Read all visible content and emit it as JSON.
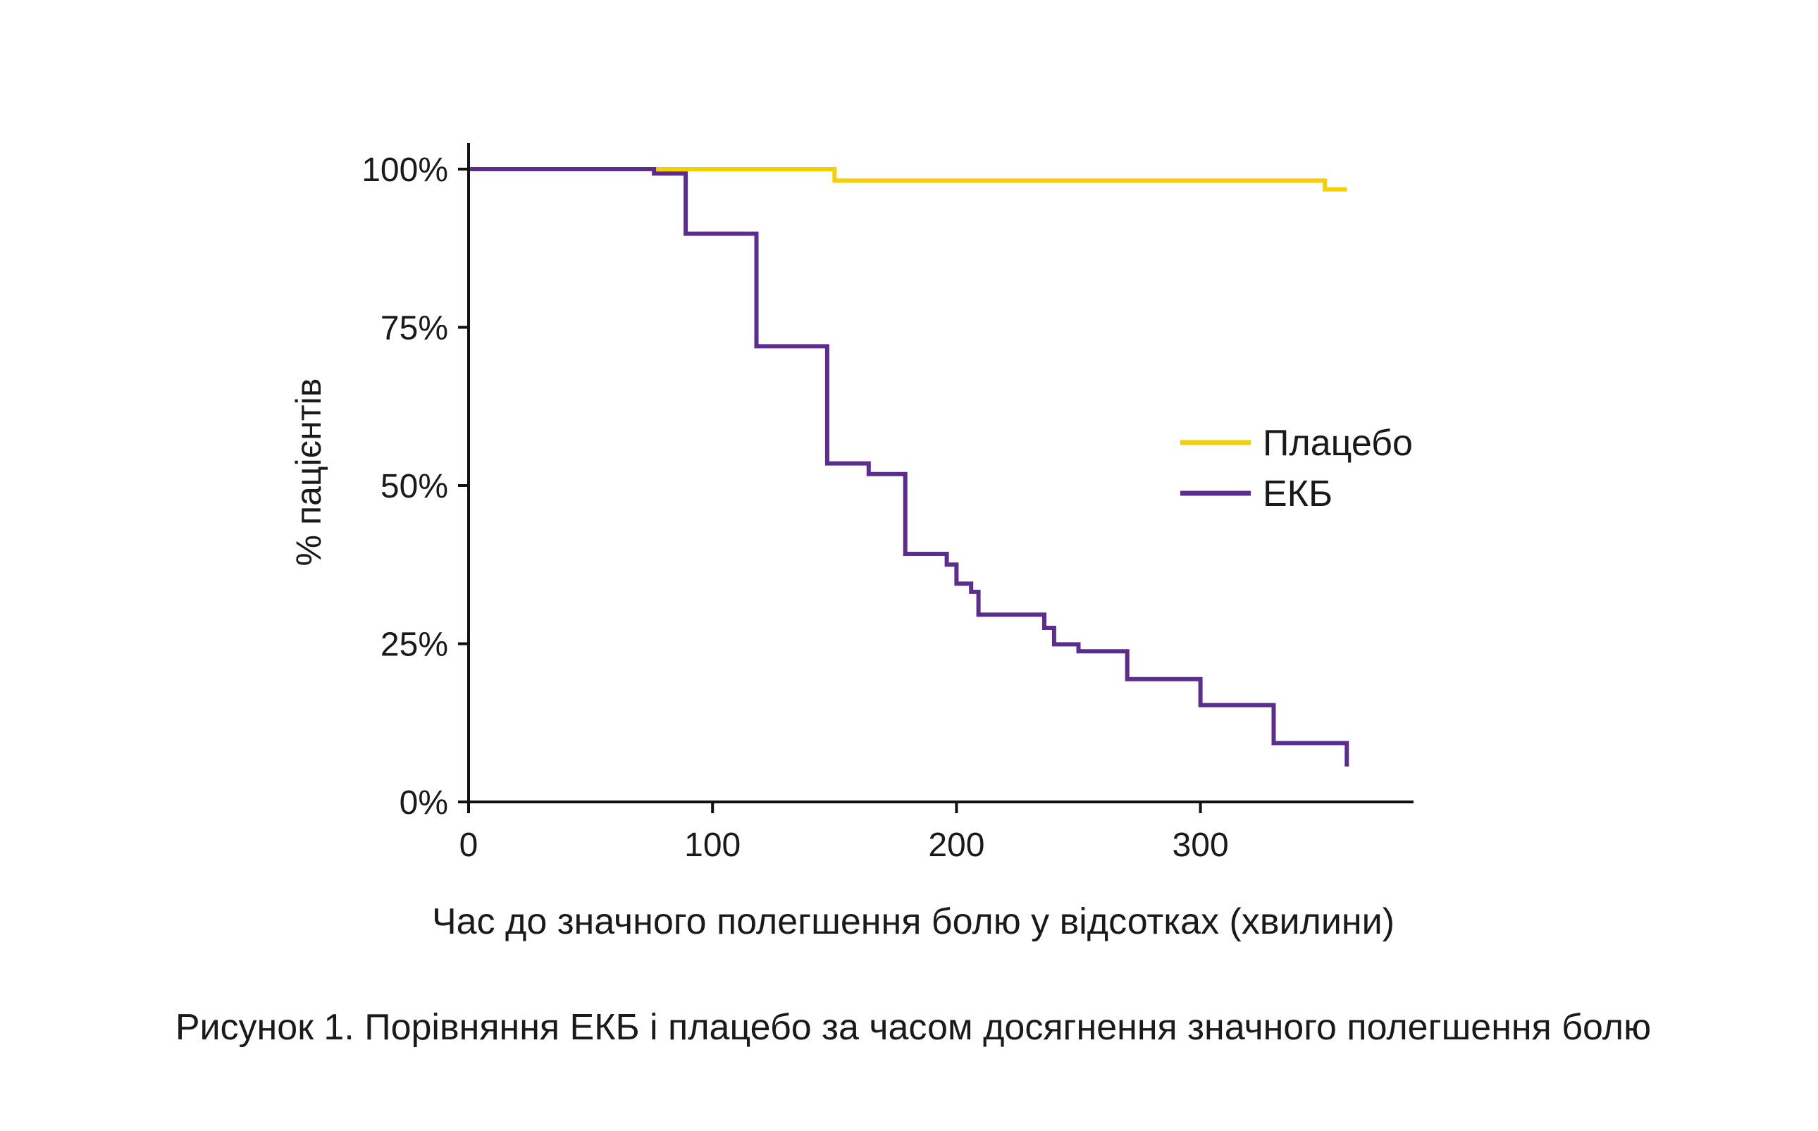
{
  "chart_data": {
    "type": "line",
    "subtype": "step (Kaplan-Meier)",
    "xlabel": "Час до значного полегшення болю у відсотках (хвилини)",
    "ylabel": "% пацієнтів",
    "caption": "Рисунок 1. Порівняння ЕКБ і плацебо за часом досягнення значного полегшення болю",
    "xlim": [
      0,
      390
    ],
    "ylim": [
      0,
      100
    ],
    "xticks": [
      0,
      100,
      200,
      300
    ],
    "xtick_labels": [
      "0",
      "100",
      "200",
      "300"
    ],
    "yticks": [
      0,
      25,
      50,
      75,
      100
    ],
    "ytick_labels": [
      "0%",
      "25%",
      "50%",
      "75%",
      "100%"
    ],
    "grid": false,
    "legend_position": "right-middle",
    "series": [
      {
        "name": "Плацебо",
        "color": "#F5CF00",
        "points": [
          [
            0,
            100
          ],
          [
            150,
            100
          ],
          [
            150,
            98.2
          ],
          [
            351,
            98.2
          ],
          [
            351,
            96.8
          ],
          [
            360,
            96.8
          ]
        ]
      },
      {
        "name": "ЕКБ",
        "color": "#5B2D8E",
        "points": [
          [
            0,
            100
          ],
          [
            76,
            100
          ],
          [
            76,
            99.3
          ],
          [
            89,
            99.3
          ],
          [
            89,
            89.8
          ],
          [
            118,
            89.8
          ],
          [
            118,
            72
          ],
          [
            147,
            72
          ],
          [
            147,
            53.5
          ],
          [
            164,
            53.5
          ],
          [
            164,
            51.8
          ],
          [
            179,
            51.8
          ],
          [
            179,
            39.2
          ],
          [
            196,
            39.2
          ],
          [
            196,
            37.5
          ],
          [
            200,
            37.5
          ],
          [
            200,
            34.5
          ],
          [
            206,
            34.5
          ],
          [
            206,
            33.2
          ],
          [
            209,
            33.2
          ],
          [
            209,
            29.6
          ],
          [
            236,
            29.6
          ],
          [
            236,
            27.5
          ],
          [
            240,
            27.5
          ],
          [
            240,
            24.9
          ],
          [
            250,
            24.9
          ],
          [
            250,
            23.8
          ],
          [
            270,
            23.8
          ],
          [
            270,
            19.4
          ],
          [
            300,
            19.4
          ],
          [
            300,
            15.3
          ],
          [
            330,
            15.3
          ],
          [
            330,
            9.3
          ],
          [
            360,
            9.3
          ],
          [
            360,
            5.6
          ]
        ]
      }
    ]
  }
}
